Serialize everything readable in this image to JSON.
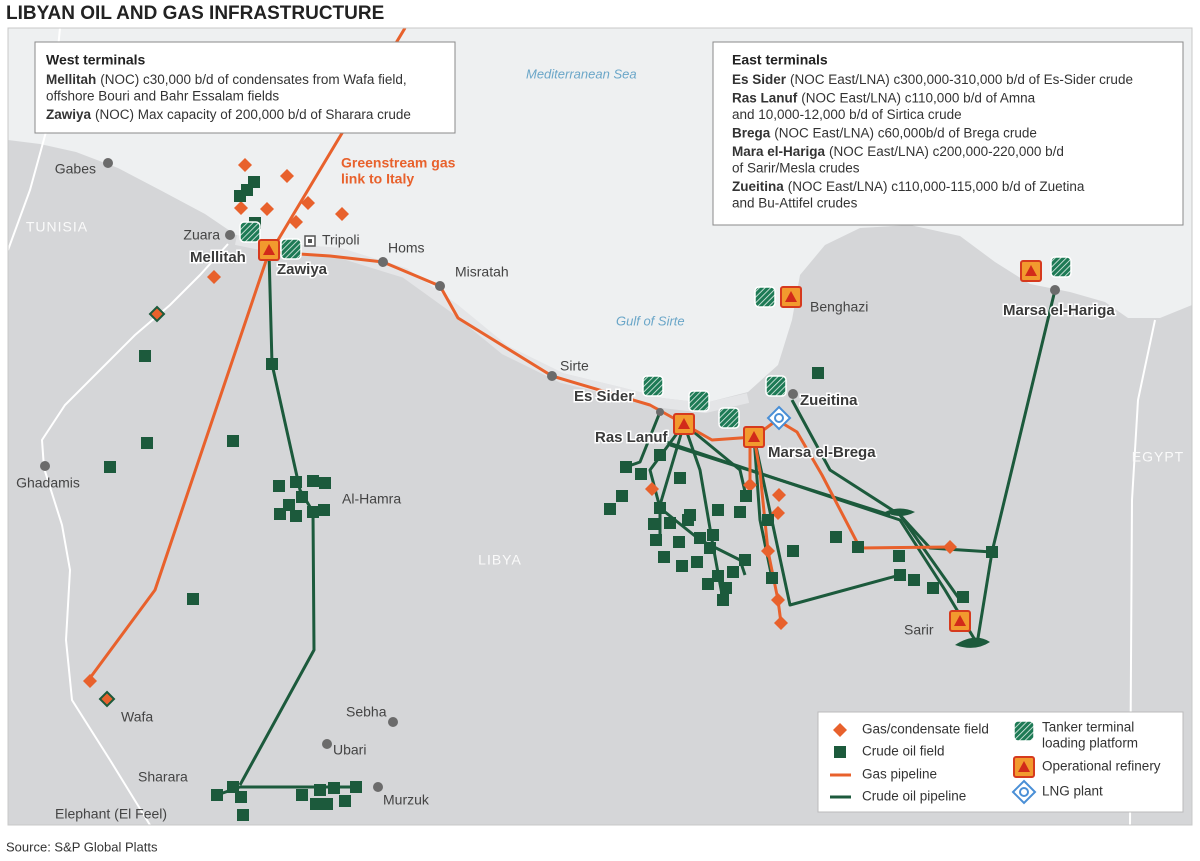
{
  "title": "LIBYAN OIL AND GAS INFRASTRUCTURE",
  "source": "Source: S&P Global Platts",
  "west_terminals": {
    "heading": "West terminals",
    "entries": [
      {
        "name": "Mellitah",
        "lines": [
          "(NOC) c30,000 b/d of condensates from Wafa field,",
          "offshore Bouri and Bahr Essalam fields"
        ]
      },
      {
        "name": "Zawiya",
        "lines": [
          "(NOC) Max capacity of 200,000 b/d of Sharara crude"
        ]
      }
    ]
  },
  "east_terminals": {
    "heading": "East terminals",
    "entries": [
      {
        "name": "Es Sider",
        "lines": [
          "(NOC East/LNA) c300,000-310,000 b/d of Es-Sider crude"
        ]
      },
      {
        "name": "Ras Lanuf",
        "lines": [
          "(NOC East/LNA) c110,000 b/d of Amna",
          "and 10,000-12,000 b/d of Sirtica crude"
        ]
      },
      {
        "name": "Brega",
        "lines": [
          "(NOC East/LNA) c60,000b/d of Brega crude"
        ]
      },
      {
        "name": "Mara el-Hariga",
        "lines": [
          "(NOC East/LNA) c200,000-220,000 b/d",
          "of Sarir/Mesla crudes"
        ]
      },
      {
        "name": "Zueitina",
        "lines": [
          "(NOC East/LNA) c110,000-115,000 b/d of Zuetina",
          "and Bu-Attifel crudes"
        ]
      }
    ]
  },
  "seas": [
    "Mediterranean Sea",
    "Gulf of Sirte"
  ],
  "countries": [
    "TUNISIA",
    "EGYPT",
    "LIBYA"
  ],
  "terminal_labels": [
    "Mellitah",
    "Zawiya",
    "Es Sider",
    "Ras Lanuf",
    "Zueitina",
    "Marsa el-Brega",
    "Marsa el-Hariga"
  ],
  "places": [
    "Gabes",
    "Zuara",
    "Tripoli",
    "Homs",
    "Misratah",
    "Sirte",
    "Benghazi",
    "Ghadamis",
    "Al-Hamra",
    "Wafa",
    "Sharara",
    "Elephant (El Feel)",
    "Sebha",
    "Ubari",
    "Murzuk",
    "Sarir"
  ],
  "annotation": [
    "Greenstream gas",
    "link to Italy"
  ],
  "legend": {
    "gas_field": "Gas/condensate field",
    "crude_field": "Crude oil field",
    "gas_pipeline": "Gas pipeline",
    "crude_pipeline": "Crude oil pipeline",
    "terminal": [
      "Tanker terminal",
      "loading platform"
    ],
    "refinery": "Operational refinery",
    "lng": "LNG plant"
  }
}
